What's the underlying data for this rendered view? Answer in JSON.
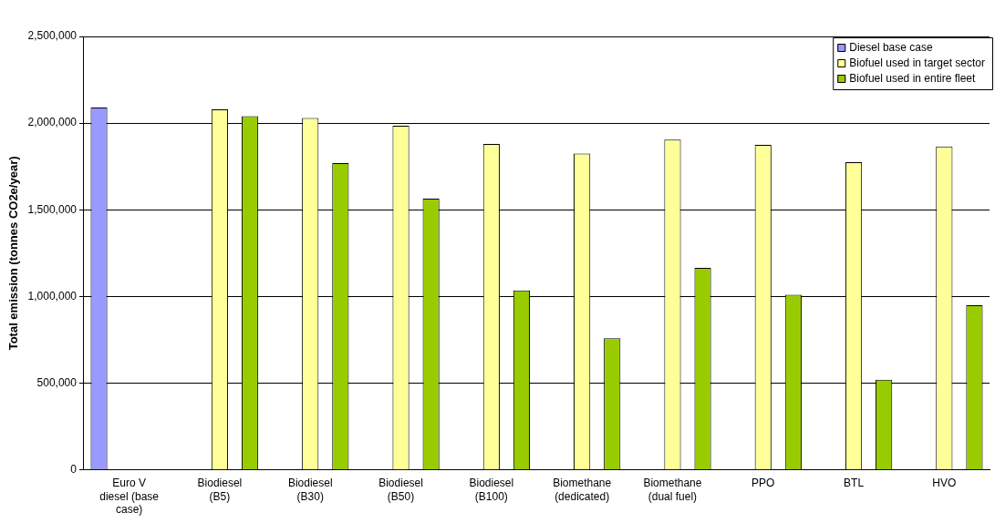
{
  "chart_data": {
    "type": "bar",
    "ylabel": "Total emission (tonnes CO2e/year)",
    "categories": [
      "Euro V diesel (base case)",
      "Biodiesel (B5)",
      "Biodiesel (B30)",
      "Biodiesel (B50)",
      "Biodiesel (B100)",
      "Biomethane (dedicated)",
      "Biomethane (dual fuel)",
      "PPO",
      "BTL",
      "HVO"
    ],
    "series": [
      {
        "name": "Diesel base case",
        "color": "#9999ff",
        "values": [
          2090000,
          null,
          null,
          null,
          null,
          null,
          null,
          null,
          null,
          null
        ]
      },
      {
        "name": "Biofuel used in target sector",
        "color": "#ffff99",
        "values": [
          null,
          2080000,
          2030000,
          1985000,
          1880000,
          1825000,
          1905000,
          1875000,
          1775000,
          1865000
        ]
      },
      {
        "name": "Biofuel used in entire fleet",
        "color": "#99cc00",
        "values": [
          null,
          2040000,
          1770000,
          1565000,
          1035000,
          760000,
          1165000,
          1010000,
          520000,
          950000
        ]
      }
    ],
    "ylim": [
      0,
      2500000
    ],
    "yticks": [
      0,
      {
        "value": 500000,
        "label": "500,000"
      },
      {
        "value": 1000000,
        "label": "1,000,000"
      },
      {
        "value": 1500000,
        "label": "1,500,000"
      },
      {
        "value": 2000000,
        "label": "2,000,000"
      },
      {
        "value": 2500000,
        "label": "2,500,000"
      }
    ],
    "grid": "y",
    "legend": "top right"
  }
}
